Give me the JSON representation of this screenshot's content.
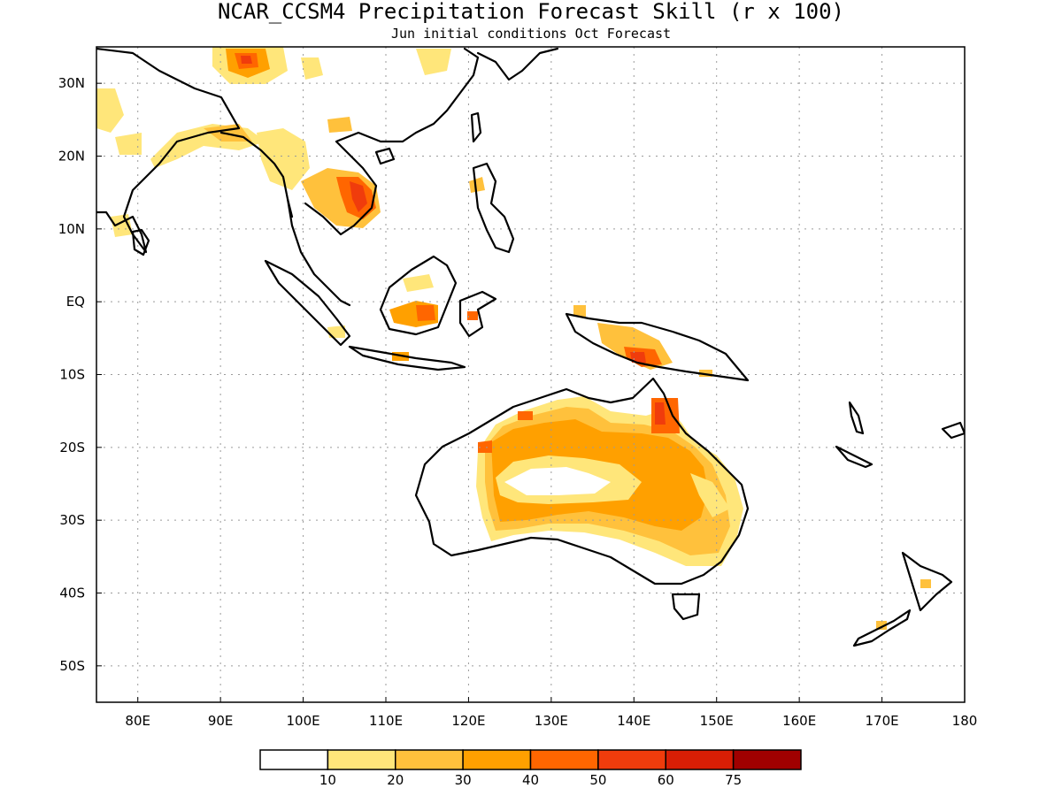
{
  "title": "NCAR_CCSM4 Precipitation Forecast Skill (r x 100)",
  "subtitle": "Jun initial conditions  Oct Forecast",
  "map": {
    "lon_range": [
      75,
      180
    ],
    "lat_range": [
      -55,
      35
    ],
    "lon_ticks": [
      {
        "v": 80,
        "label": "80E"
      },
      {
        "v": 90,
        "label": "90E"
      },
      {
        "v": 100,
        "label": "100E"
      },
      {
        "v": 110,
        "label": "110E"
      },
      {
        "v": 120,
        "label": "120E"
      },
      {
        "v": 130,
        "label": "130E"
      },
      {
        "v": 140,
        "label": "140E"
      },
      {
        "v": 150,
        "label": "150E"
      },
      {
        "v": 160,
        "label": "160E"
      },
      {
        "v": 170,
        "label": "170E"
      },
      {
        "v": 180,
        "label": "180"
      }
    ],
    "lat_ticks": [
      {
        "v": 30,
        "label": "30N"
      },
      {
        "v": 20,
        "label": "20N"
      },
      {
        "v": 10,
        "label": "10N"
      },
      {
        "v": 0,
        "label": "EQ"
      },
      {
        "v": -10,
        "label": "10S"
      },
      {
        "v": -20,
        "label": "20S"
      },
      {
        "v": -30,
        "label": "30S"
      },
      {
        "v": -40,
        "label": "40S"
      },
      {
        "v": -50,
        "label": "50S"
      }
    ],
    "grid": true
  },
  "colorbar": {
    "colors": [
      "#ffffff",
      "#ffe67a",
      "#ffc13c",
      "#ffa000",
      "#ff6600",
      "#f03c0c",
      "#d81e05",
      "#a00000"
    ],
    "labels": [
      "10",
      "20",
      "30",
      "40",
      "50",
      "60",
      "75"
    ]
  }
}
